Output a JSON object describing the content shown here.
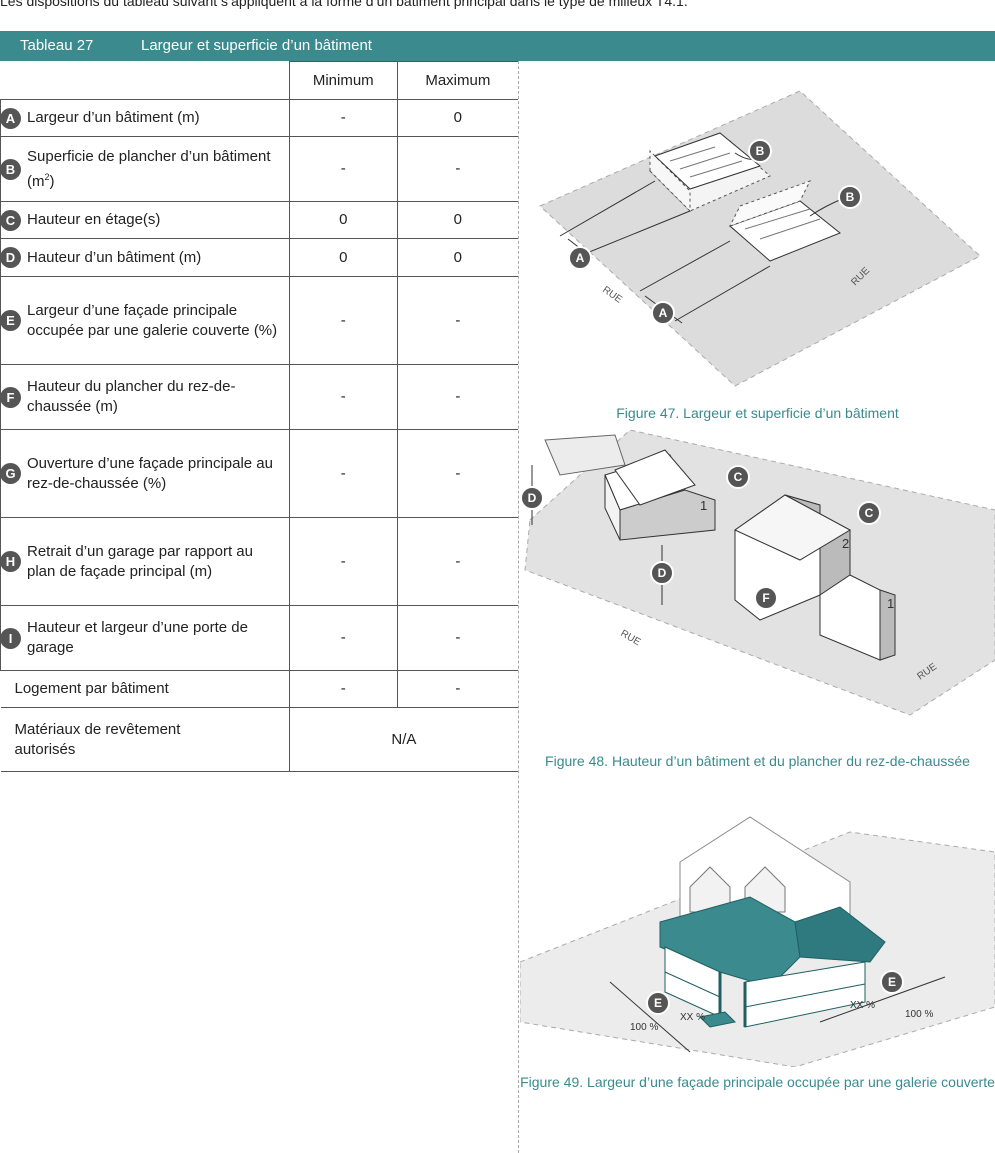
{
  "intro": "Les dispositions du tableau suivant s’appliquent à la forme d’un bâtiment principal dans le type de milieux T4.1.",
  "table_number": "Tableau 27",
  "table_title": "Largeur et superficie d’un bâtiment",
  "columns": {
    "min": "Minimum",
    "max": "Maximum"
  },
  "rows": [
    {
      "letter": "A",
      "label": "Largeur d’un bâtiment (m)",
      "min": "-",
      "max": "0"
    },
    {
      "letter": "B",
      "label": "Superficie de plancher d’un bâtiment (m",
      "sup": "2",
      "label_end": ")",
      "min": "-",
      "max": "-"
    },
    {
      "letter": "C",
      "label": "Hauteur en étage(s)",
      "min": "0",
      "max": "0"
    },
    {
      "letter": "D",
      "label": "Hauteur d’un bâtiment (m)",
      "min": "0",
      "max": "0"
    },
    {
      "letter": "E",
      "label": "Largeur d’une façade principale occupée par une galerie couverte (%)",
      "min": "-",
      "max": "-"
    },
    {
      "letter": "F",
      "label": "Hauteur du plancher du rez-de-chaussée (m)",
      "min": "-",
      "max": "-"
    },
    {
      "letter": "G",
      "label": "Ouverture d’une façade principale au rez-de-chaussée (%)",
      "min": "-",
      "max": "-"
    },
    {
      "letter": "H",
      "label": "Retrait d’un garage par rapport au plan de façade principal (m)",
      "min": "-",
      "max": "-"
    },
    {
      "letter": "I",
      "label": "Hauteur et largeur d’une porte de garage",
      "min": "-",
      "max": "-"
    }
  ],
  "extra_rows": [
    {
      "label": "Logement par bâtiment",
      "min": "-",
      "max": "-"
    },
    {
      "label": "Matériaux de revêtement autorisés",
      "value": "N/A"
    }
  ],
  "figures": [
    {
      "caption": "Figure 47. Largeur et superficie d’un bâtiment",
      "street_label": "RUE",
      "callouts": [
        "A",
        "B"
      ]
    },
    {
      "caption": "Figure 48. Hauteur d’un bâtiment et du plancher du rez-de-chaussée",
      "street_label": "RUE",
      "callouts": [
        "C",
        "D",
        "F"
      ],
      "storeys": [
        "1",
        "2",
        "1"
      ]
    },
    {
      "caption": "Figure 49. Largeur d’une façade principale occupée par une galerie couverte",
      "callouts": [
        "E"
      ],
      "measures": [
        "100 %",
        "XX %",
        "XX %",
        "100 %"
      ]
    }
  ],
  "colors": {
    "accent": "#3a8a8e",
    "callout": "#555555"
  }
}
